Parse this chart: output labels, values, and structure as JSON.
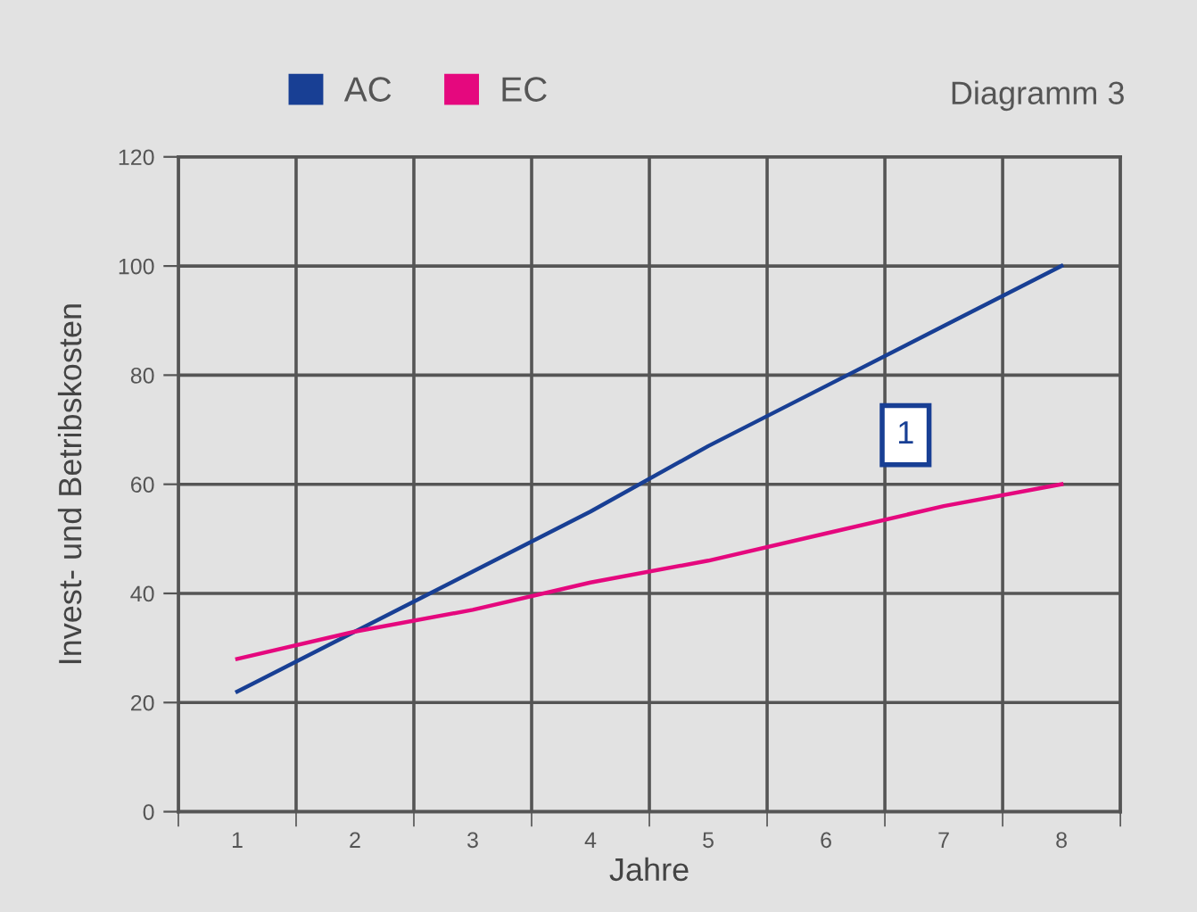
{
  "chart_data": {
    "type": "line",
    "title": "Diagramm 3",
    "xlabel": "Jahre",
    "ylabel": "Invest- und Betribskosten",
    "categories": [
      "1",
      "2",
      "3",
      "4",
      "5",
      "6",
      "7",
      "8"
    ],
    "series": [
      {
        "name": "AC",
        "color": "#183f94",
        "values": [
          22,
          33,
          44,
          55,
          67,
          78,
          89,
          100
        ]
      },
      {
        "name": "EC",
        "color": "#e5087e",
        "values": [
          28,
          33,
          37,
          42,
          46,
          51,
          56,
          60
        ]
      }
    ],
    "ylim": [
      0,
      120
    ],
    "yticks": [
      0,
      20,
      40,
      60,
      80,
      100,
      120
    ],
    "grid": true,
    "legend": "top left",
    "marker": "none",
    "line_style": "solid",
    "annotations": [
      "1"
    ]
  }
}
